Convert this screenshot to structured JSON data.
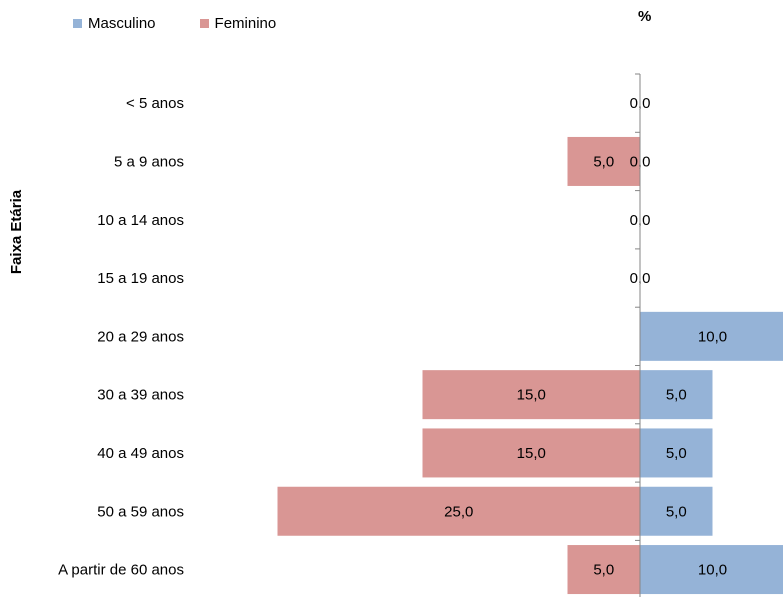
{
  "chart_data": {
    "type": "bar",
    "orientation": "horizontal",
    "layout": "population-pyramid",
    "title": "",
    "unit_label": "%",
    "ylabel": "Faixa Etária",
    "xlabel": "",
    "grid": false,
    "legend_position": "top-left",
    "categories": [
      "< 5 anos",
      "5 a 9 anos",
      "10 a 14 anos",
      "15 a 19 anos",
      "20 a 29 anos",
      "30 a 39 anos",
      "40 a 49 anos",
      "50 a 59 anos",
      "A partir de 60 anos"
    ],
    "series": [
      {
        "name": "Masculino",
        "color": "#95b3d7",
        "values": [
          0.0,
          0.0,
          0.0,
          0.0,
          10.0,
          5.0,
          5.0,
          5.0,
          10.0
        ],
        "labels": [
          "0,0",
          "0,0",
          "0,0",
          "0,0",
          "10,0",
          "5,0",
          "5,0",
          "5,0",
          "10,0"
        ]
      },
      {
        "name": "Feminino",
        "color": "#d99694",
        "values": [
          null,
          5.0,
          null,
          null,
          null,
          15.0,
          15.0,
          25.0,
          5.0
        ],
        "labels": [
          "",
          "5,0",
          "",
          "",
          "",
          "15,0",
          "15,0",
          "25,0",
          "5,0"
        ]
      }
    ]
  }
}
